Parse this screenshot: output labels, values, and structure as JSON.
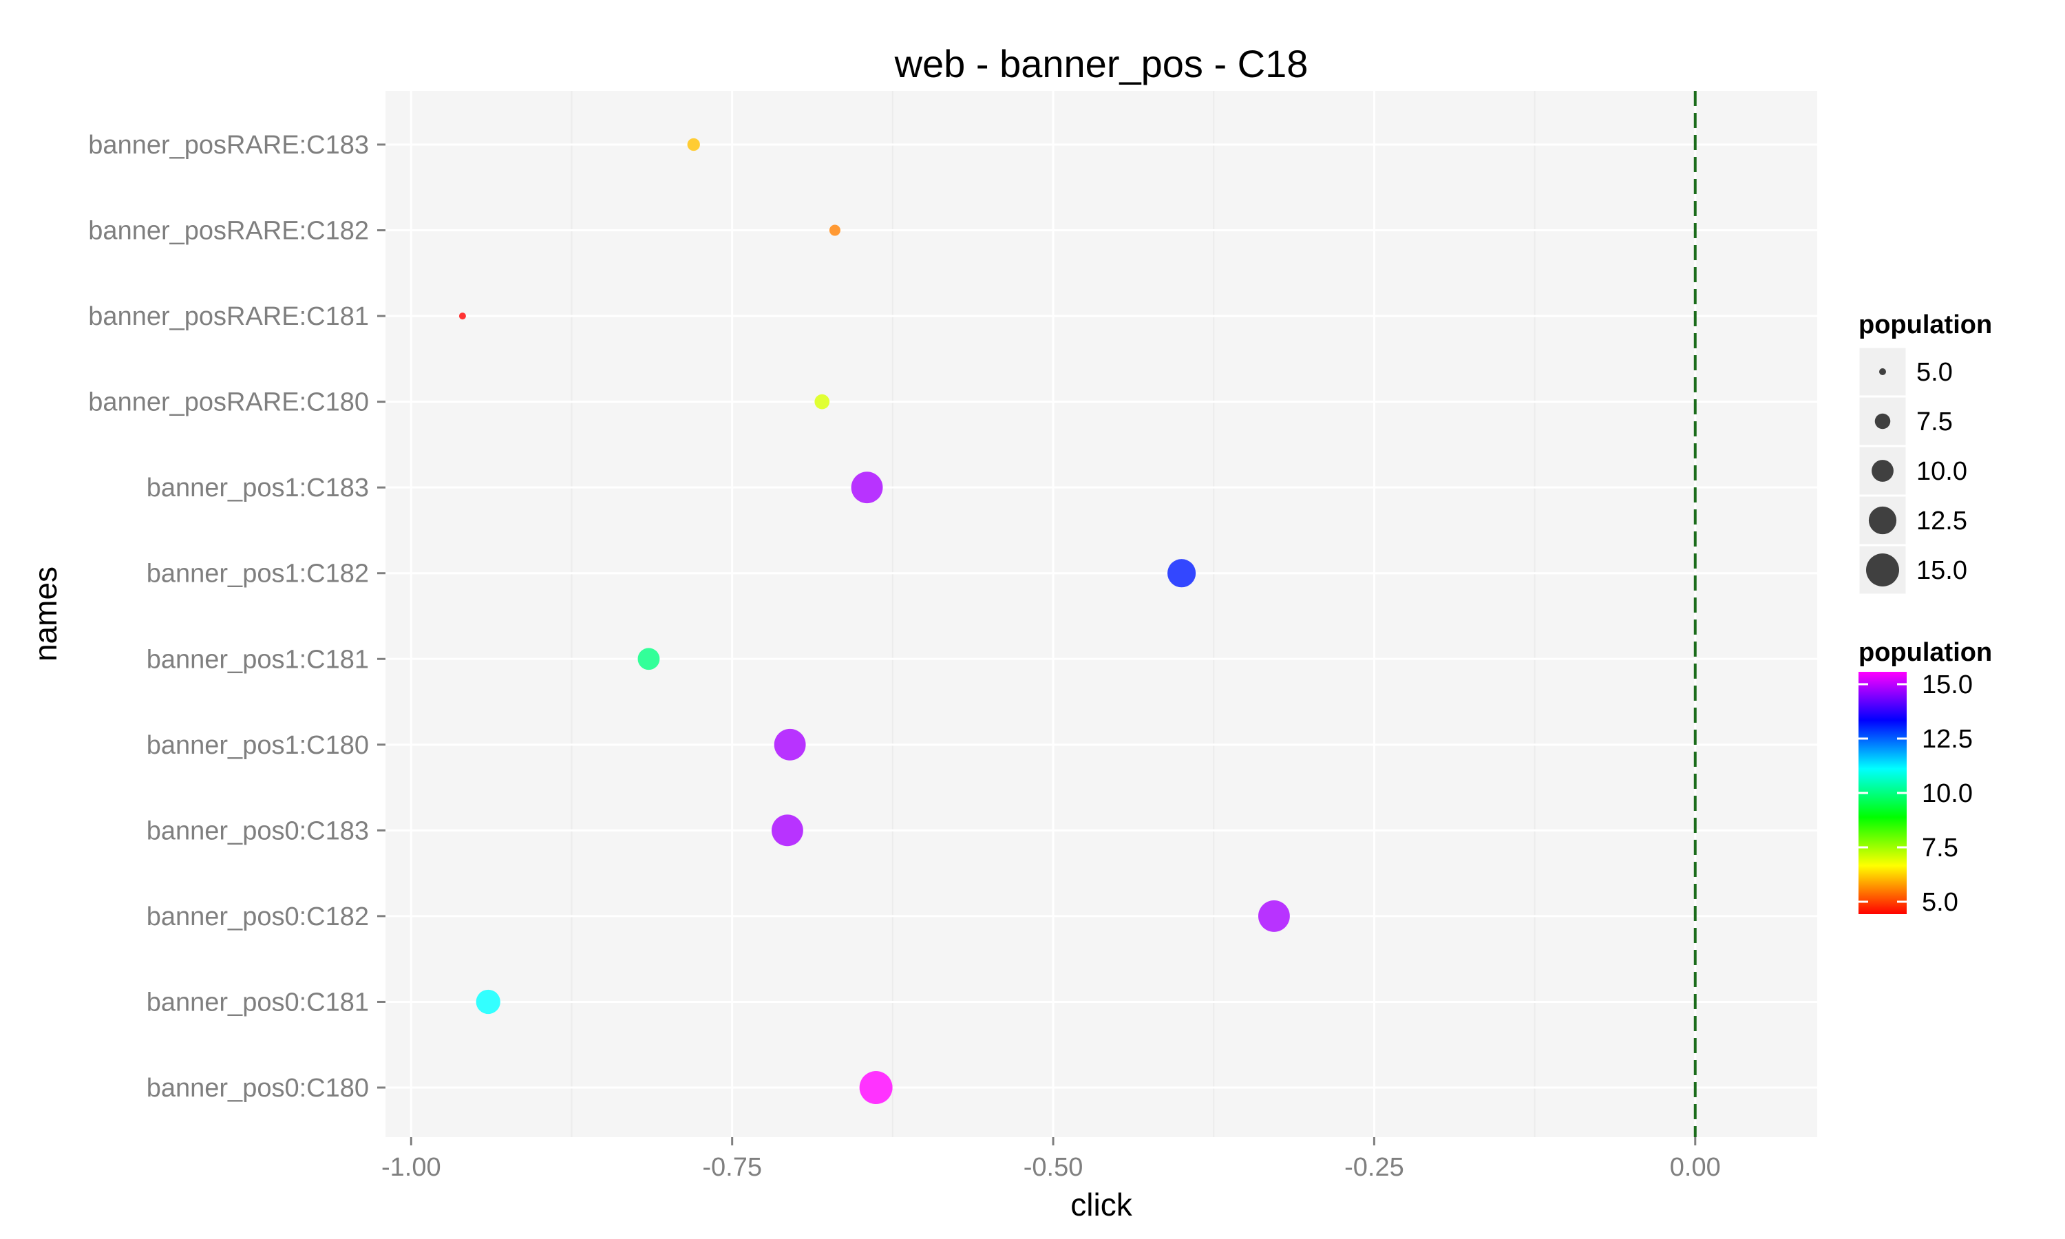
{
  "chart_data": {
    "type": "scatter",
    "title": "web - banner_pos - C18",
    "xlabel": "click",
    "ylabel": "names",
    "xlim": [
      -1.02,
      0.095
    ],
    "x_ticks": [
      -1.0,
      -0.75,
      -0.5,
      -0.25,
      0.0
    ],
    "x_tick_labels": [
      "-1.00",
      "-0.75",
      "-0.50",
      "-0.25",
      "0.00"
    ],
    "grid": true,
    "reference_line": {
      "x": 0.0,
      "style": "dashed",
      "color": "#1a6b1a"
    },
    "categories": [
      "banner_posRARE:C183",
      "banner_posRARE:C182",
      "banner_posRARE:C181",
      "banner_posRARE:C180",
      "banner_pos1:C183",
      "banner_pos1:C182",
      "banner_pos1:C181",
      "banner_pos1:C180",
      "banner_pos0:C183",
      "banner_pos0:C182",
      "banner_pos0:C181",
      "banner_pos0:C180"
    ],
    "points": [
      {
        "name": "banner_posRARE:C183",
        "click": -0.78,
        "population": 6.5
      },
      {
        "name": "banner_posRARE:C182",
        "click": -0.67,
        "population": 6.0
      },
      {
        "name": "banner_posRARE:C181",
        "click": -0.96,
        "population": 5.0
      },
      {
        "name": "banner_posRARE:C180",
        "click": -0.68,
        "population": 7.3
      },
      {
        "name": "banner_pos1:C183",
        "click": -0.645,
        "population": 14.3
      },
      {
        "name": "banner_pos1:C182",
        "click": -0.4,
        "population": 12.8
      },
      {
        "name": "banner_pos1:C181",
        "click": -0.815,
        "population": 10.0
      },
      {
        "name": "banner_pos1:C180",
        "click": -0.705,
        "population": 14.3
      },
      {
        "name": "banner_pos0:C183",
        "click": -0.707,
        "population": 14.3
      },
      {
        "name": "banner_pos0:C182",
        "click": -0.328,
        "population": 14.3
      },
      {
        "name": "banner_pos0:C181",
        "click": -0.94,
        "population": 11.0
      },
      {
        "name": "banner_pos0:C180",
        "click": -0.638,
        "population": 15.0
      }
    ],
    "size_legend": {
      "title": "population",
      "values": [
        5.0,
        7.5,
        10.0,
        12.5,
        15.0
      ],
      "labels": [
        "5.0",
        "7.5",
        "10.0",
        "12.5",
        "15.0"
      ]
    },
    "color_legend": {
      "title": "population",
      "min": 5.0,
      "max": 15.0,
      "labels": [
        "15.0",
        "12.5",
        "10.0",
        "7.5",
        "5.0"
      ],
      "values": [
        15.0,
        12.5,
        10.0,
        7.5,
        5.0
      ]
    },
    "colors": {
      "panel_bg": "#f5f5f5",
      "grid_major": "#ffffff",
      "grid_minor": "#ececec",
      "legend_key_bg": "#f0f0f0",
      "size_key_point": "#404040"
    }
  }
}
